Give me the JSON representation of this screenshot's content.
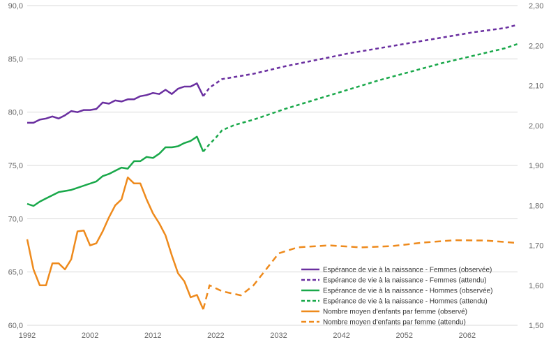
{
  "chart_data": {
    "type": "line",
    "title": "",
    "xlabel": "",
    "ylabel": "",
    "xlim": [
      1992,
      2070
    ],
    "ylim": [
      60,
      90
    ],
    "y2lim": [
      1.5,
      2.3
    ],
    "grid": "horizontal",
    "legend_position": "bottom-right",
    "x_ticks": [
      {
        "value": 1992,
        "label": "1992"
      },
      {
        "value": 2002,
        "label": "2002"
      },
      {
        "value": 2012,
        "label": "2012"
      },
      {
        "value": 2022,
        "label": "2022"
      },
      {
        "value": 2032,
        "label": "2032"
      },
      {
        "value": 2042,
        "label": "2042"
      },
      {
        "value": 2052,
        "label": "2052"
      },
      {
        "value": 2062,
        "label": "2062"
      }
    ],
    "y_ticks": [
      {
        "value": 60,
        "label": "60,0"
      },
      {
        "value": 65,
        "label": "65,0"
      },
      {
        "value": 70,
        "label": "70,0"
      },
      {
        "value": 75,
        "label": "75,0"
      },
      {
        "value": 80,
        "label": "80,0"
      },
      {
        "value": 85,
        "label": "85,0"
      },
      {
        "value": 90,
        "label": "90,0"
      }
    ],
    "y2_ticks": [
      {
        "value": 1.5,
        "label": "1,50"
      },
      {
        "value": 1.6,
        "label": "1,60"
      },
      {
        "value": 1.7,
        "label": "1,70"
      },
      {
        "value": 1.8,
        "label": "1,80"
      },
      {
        "value": 1.9,
        "label": "1,90"
      },
      {
        "value": 2.0,
        "label": "2,00"
      },
      {
        "value": 2.1,
        "label": "2,10"
      },
      {
        "value": 2.2,
        "label": "2,20"
      },
      {
        "value": 2.3,
        "label": "2,30"
      }
    ],
    "series": [
      {
        "name": "Espérance de vie à la naissance - Femmes (observée)",
        "color": "#6a2fa0",
        "dashed": false,
        "axis": "left",
        "x": [
          1992,
          1993,
          1994,
          1995,
          1996,
          1997,
          1998,
          1999,
          2000,
          2001,
          2002,
          2003,
          2004,
          2005,
          2006,
          2007,
          2008,
          2009,
          2010,
          2011,
          2012,
          2013,
          2014,
          2015,
          2016,
          2017,
          2018,
          2019,
          2020
        ],
        "y": [
          79.0,
          79.0,
          79.3,
          79.4,
          79.6,
          79.4,
          79.7,
          80.1,
          80.0,
          80.2,
          80.2,
          80.3,
          80.9,
          80.8,
          81.1,
          81.0,
          81.2,
          81.2,
          81.5,
          81.6,
          81.8,
          81.7,
          82.1,
          81.7,
          82.2,
          82.4,
          82.4,
          82.7,
          81.5
        ]
      },
      {
        "name": "Espérance de vie à la naissance - Femmes (attendu)",
        "color": "#6a2fa0",
        "dashed": true,
        "axis": "left",
        "x": [
          2020,
          2021,
          2023,
          2028,
          2033,
          2038,
          2043,
          2048,
          2053,
          2058,
          2063,
          2068,
          2070
        ],
        "y": [
          81.5,
          82.3,
          83.1,
          83.6,
          84.3,
          84.9,
          85.5,
          86.0,
          86.5,
          87.0,
          87.5,
          87.9,
          88.2
        ]
      },
      {
        "name": "Espérance de vie à la naissance - Hommes (observée)",
        "color": "#19a84a",
        "dashed": false,
        "axis": "left",
        "x": [
          1992,
          1993,
          1994,
          1995,
          1996,
          1997,
          1998,
          1999,
          2000,
          2001,
          2002,
          2003,
          2004,
          2005,
          2006,
          2007,
          2008,
          2009,
          2010,
          2011,
          2012,
          2013,
          2014,
          2015,
          2016,
          2017,
          2018,
          2019,
          2020
        ],
        "y": [
          71.4,
          71.2,
          71.6,
          71.9,
          72.2,
          72.5,
          72.6,
          72.7,
          72.9,
          73.1,
          73.3,
          73.5,
          74.0,
          74.2,
          74.5,
          74.8,
          74.7,
          75.4,
          75.4,
          75.8,
          75.7,
          76.1,
          76.7,
          76.7,
          76.8,
          77.1,
          77.3,
          77.7,
          76.3
        ]
      },
      {
        "name": "Espérance de vie à la naissance - Hommes (attendu)",
        "color": "#19a84a",
        "dashed": true,
        "axis": "left",
        "x": [
          2020,
          2021,
          2022,
          2023,
          2025,
          2028,
          2033,
          2038,
          2043,
          2048,
          2053,
          2058,
          2063,
          2068,
          2070
        ],
        "y": [
          76.3,
          77.0,
          77.6,
          78.3,
          78.8,
          79.3,
          80.3,
          81.2,
          82.1,
          83.0,
          83.8,
          84.6,
          85.3,
          86.0,
          86.4
        ]
      },
      {
        "name": "Nombre moyen d'enfants par femme (observé)",
        "color": "#ee8a1c",
        "dashed": false,
        "axis": "right",
        "x": [
          1992,
          1993,
          1994,
          1995,
          1996,
          1997,
          1998,
          1999,
          2000,
          2001,
          2002,
          2003,
          2004,
          2005,
          2006,
          2007,
          2008,
          2009,
          2010,
          2011,
          2012,
          2013,
          2014,
          2015,
          2016,
          2017,
          2018,
          2019,
          2020
        ],
        "y": [
          1.715,
          1.64,
          1.6,
          1.6,
          1.655,
          1.655,
          1.64,
          1.665,
          1.735,
          1.737,
          1.7,
          1.705,
          1.735,
          1.77,
          1.8,
          1.815,
          1.87,
          1.855,
          1.855,
          1.815,
          1.78,
          1.755,
          1.725,
          1.675,
          1.63,
          1.61,
          1.57,
          1.576,
          1.54
        ]
      },
      {
        "name": "Nombre moyen d'enfants par femme (attendu)",
        "color": "#ee8a1c",
        "dashed": true,
        "axis": "right",
        "x": [
          2020,
          2021,
          2023,
          2026,
          2028,
          2030,
          2032,
          2035,
          2040,
          2045,
          2050,
          2055,
          2060,
          2065,
          2070
        ],
        "y": [
          1.54,
          1.6,
          1.585,
          1.575,
          1.6,
          1.64,
          1.68,
          1.695,
          1.7,
          1.695,
          1.698,
          1.707,
          1.713,
          1.712,
          1.706
        ]
      }
    ]
  }
}
